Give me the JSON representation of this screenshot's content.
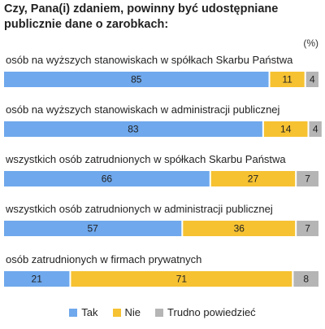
{
  "title": "Czy, Pana(i) zdaniem, powinny być udostępniane publicznie dane o zarobkach:",
  "unit": "(%)",
  "colors": {
    "tak": "#6fa8ec",
    "nie": "#f6c232",
    "trudno": "#b5b5b5"
  },
  "chart_data": {
    "type": "bar",
    "stacked": true,
    "orientation": "horizontal",
    "unit": "(%)",
    "categories": [
      "osób na wyższych stanowiskach w spółkach Skarbu Państwa",
      "osób na wyższych stanowiskach w administracji publicznej",
      "wszystkich osób zatrudnionych w spółkach Skarbu Państwa",
      "wszystkich osób zatrudnionych w administracji publicznej",
      "osób zatrudnionych w firmach prywatnych"
    ],
    "series": [
      {
        "name": "Tak",
        "values": [
          85,
          83,
          66,
          57,
          21
        ]
      },
      {
        "name": "Nie",
        "values": [
          11,
          14,
          27,
          36,
          71
        ]
      },
      {
        "name": "Trudno powiedzieć",
        "values": [
          4,
          4,
          7,
          7,
          8
        ]
      }
    ],
    "xlim": [
      0,
      100
    ],
    "legend": "bottom"
  }
}
